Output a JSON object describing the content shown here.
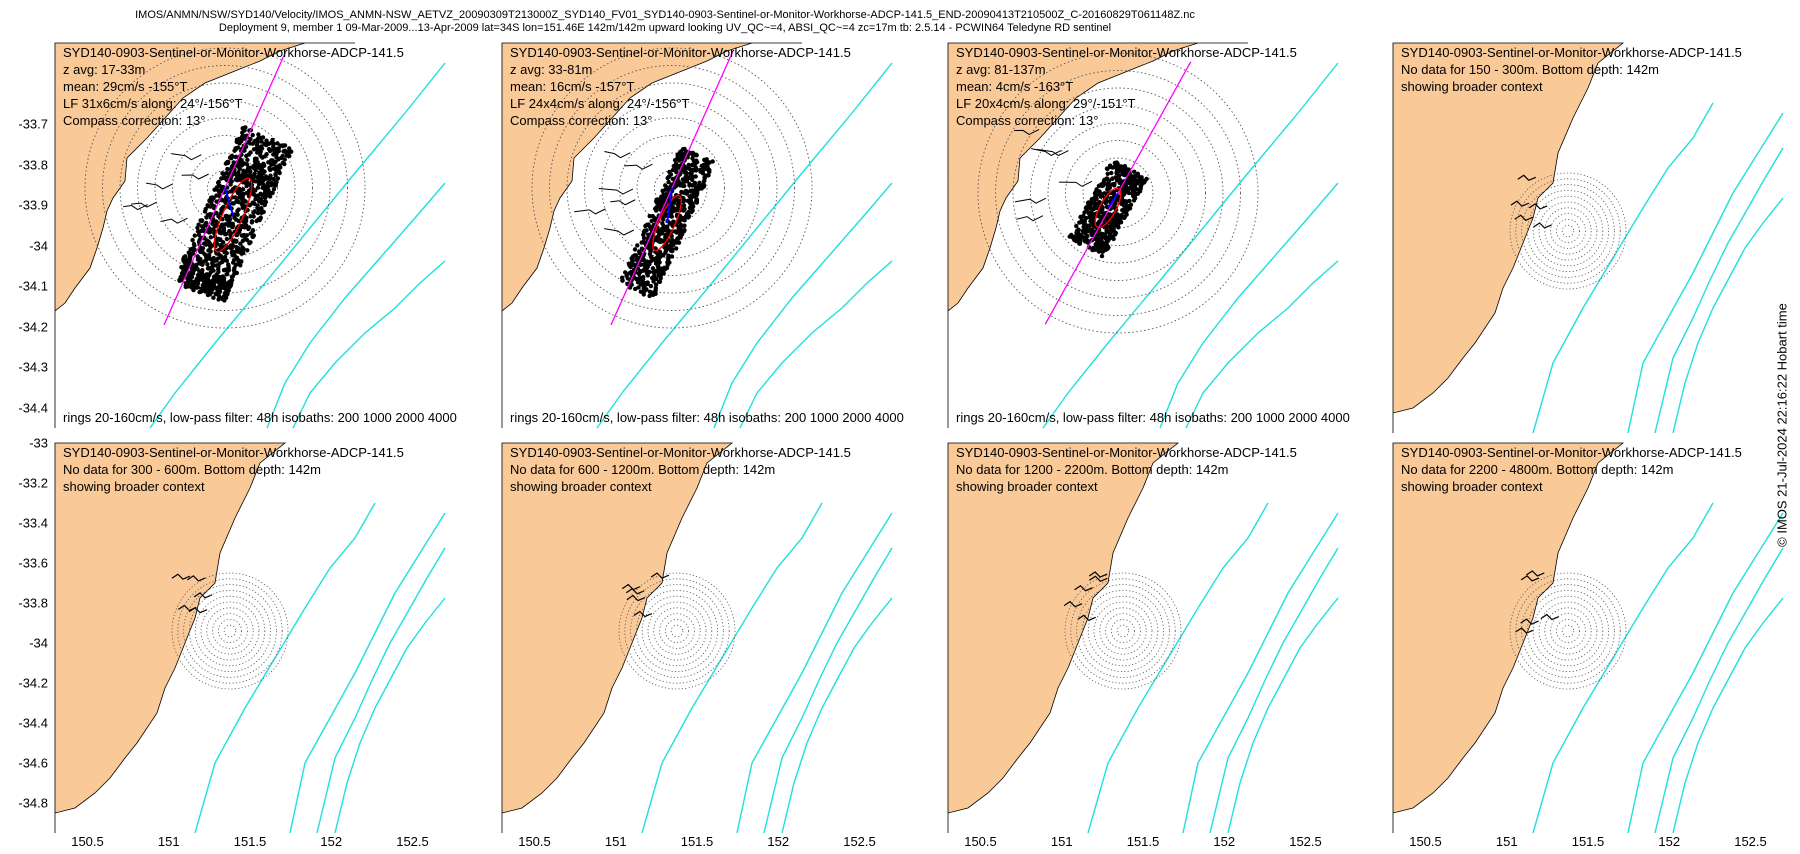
{
  "title_line1": "IMOS/ANMN/NSW/SYD140/Velocity/IMOS_ANMN-NSW_AETVZ_20090309T213000Z_SYD140_FV01_SYD140-0903-Sentinel-or-Monitor-Workhorse-ADCP-141.5_END-20090413T210500Z_C-20160829T061148Z.nc",
  "title_line2": "Deployment 9, member 1 09-Mar-2009...13-Apr-2009 lat=34S lon=151.46E 142m/142m upward looking UV_QC~=4, ABSI_QC~=4 zc=17m tb: 2.5.14 - PCWIN64 Teledyne RD sentinel",
  "footer_stamp": "© IMOS 21-Jul-2024 22:16:22 Hobart time",
  "colors": {
    "land": "#f9c998",
    "isobath": "#1ee0dc",
    "major_axis": "#ff00ff",
    "ellipse": "#ff0000",
    "mean_arrow": "#0000ff",
    "scatter": "#000000",
    "rings": "#555555"
  },
  "rings_footer": "rings 20-160cm/s, low-pass filter: 48h isobaths: 200 1000 2000 4000",
  "chart_data": [
    {
      "type": "scatter",
      "row": 1,
      "lines": [
        "SYD140-0903-Sentinel-or-Monitor-Workhorse-ADCP-141.5",
        "z avg: 17-33m",
        "mean: 29cm/s -155°T",
        "LF 31x6cm/s along: 24°/-156°T",
        "Compass correction: 13°"
      ],
      "xlim": [
        150.6,
        151.6
      ],
      "ylim": [
        -33.5,
        -34.45
      ],
      "yticks": [
        -33.7,
        -33.8,
        -33.9,
        -34,
        -34.1,
        -34.2,
        -34.3,
        -34.4
      ]
    },
    {
      "type": "scatter",
      "row": 1,
      "lines": [
        "SYD140-0903-Sentinel-or-Monitor-Workhorse-ADCP-141.5",
        "z avg: 33-81m",
        "mean: 16cm/s -157°T",
        "LF 24x4cm/s along: 24°/-156°T",
        "Compass correction: 13°"
      ]
    },
    {
      "type": "scatter",
      "row": 1,
      "lines": [
        "SYD140-0903-Sentinel-or-Monitor-Workhorse-ADCP-141.5",
        "z avg: 81-137m",
        "mean: 4cm/s -163°T",
        "LF 20x4cm/s along: 29°/-151°T",
        "Compass correction: 13°"
      ]
    },
    {
      "type": "map",
      "row": 1,
      "lines": [
        "SYD140-0903-Sentinel-or-Monitor-Workhorse-ADCP-141.5",
        "No data for 150 - 300m. Bottom depth: 142m",
        "showing broader context"
      ]
    },
    {
      "type": "map",
      "row": 2,
      "lines": [
        "SYD140-0903-Sentinel-or-Monitor-Workhorse-ADCP-141.5",
        "No data for 300 - 600m. Bottom depth: 142m",
        "showing broader context"
      ],
      "xlim": [
        150.3,
        152.7
      ],
      "ylim": [
        -33.0,
        -34.95
      ],
      "yticks": [
        -33,
        -33.2,
        -33.4,
        -33.6,
        -33.8,
        -34,
        -34.2,
        -34.4,
        -34.6,
        -34.8
      ],
      "xticks": [
        150.5,
        151,
        151.5,
        152,
        152.5
      ]
    },
    {
      "type": "map",
      "row": 2,
      "lines": [
        "SYD140-0903-Sentinel-or-Monitor-Workhorse-ADCP-141.5",
        "No data for 600 - 1200m. Bottom depth: 142m",
        "showing broader context"
      ]
    },
    {
      "type": "map",
      "row": 2,
      "lines": [
        "SYD140-0903-Sentinel-or-Monitor-Workhorse-ADCP-141.5",
        "No data for 1200 - 2200m. Bottom depth: 142m",
        "showing broader context"
      ]
    },
    {
      "type": "map",
      "row": 2,
      "lines": [
        "SYD140-0903-Sentinel-or-Monitor-Workhorse-ADCP-141.5",
        "No data for 2200 - 4800m. Bottom depth: 142m",
        "showing broader context"
      ]
    }
  ]
}
